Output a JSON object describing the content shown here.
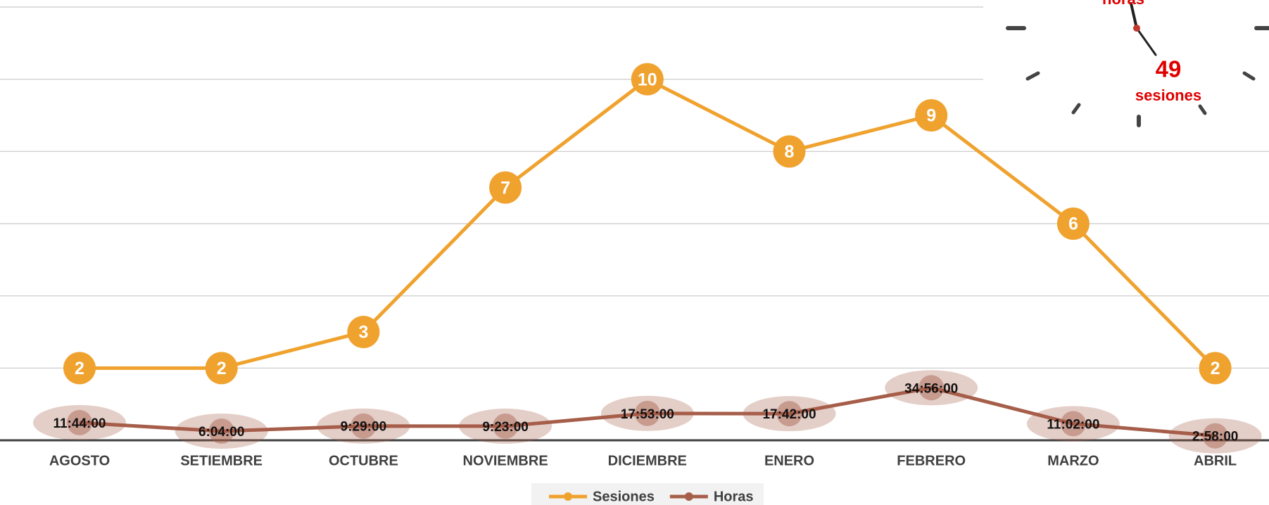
{
  "chart_data": {
    "type": "line",
    "categories": [
      "AGOSTO",
      "SETIEMBRE",
      "OCTUBRE",
      "NOVIEMBRE",
      "DICIEMBRE",
      "ENERO",
      "FEBRERO",
      "MARZO",
      "ABRIL"
    ],
    "series": [
      {
        "name": "Sesiones",
        "color": "#f0a22e",
        "values": [
          2,
          2,
          3,
          7,
          10,
          8,
          9,
          6,
          2
        ]
      },
      {
        "name": "Horas",
        "color": "#a65e4a",
        "values": [
          0.4889,
          0.2528,
          0.3951,
          0.391,
          0.7451,
          0.7375,
          1.4556,
          0.4597,
          0.1236
        ],
        "value_labels": [
          "11:44:00",
          "6:04:00",
          "9:29:00",
          "9:23:00",
          "17:53:00",
          "17:42:00",
          "34:56:00",
          "11:02:00",
          "2:58:00"
        ]
      }
    ],
    "ylim": [
      0,
      12
    ],
    "yticks": [
      0,
      2,
      4,
      6,
      8,
      10,
      12
    ],
    "grid": true,
    "legend": "bottom",
    "annotations": [
      "horas",
      "49",
      "sesiones"
    ]
  }
}
